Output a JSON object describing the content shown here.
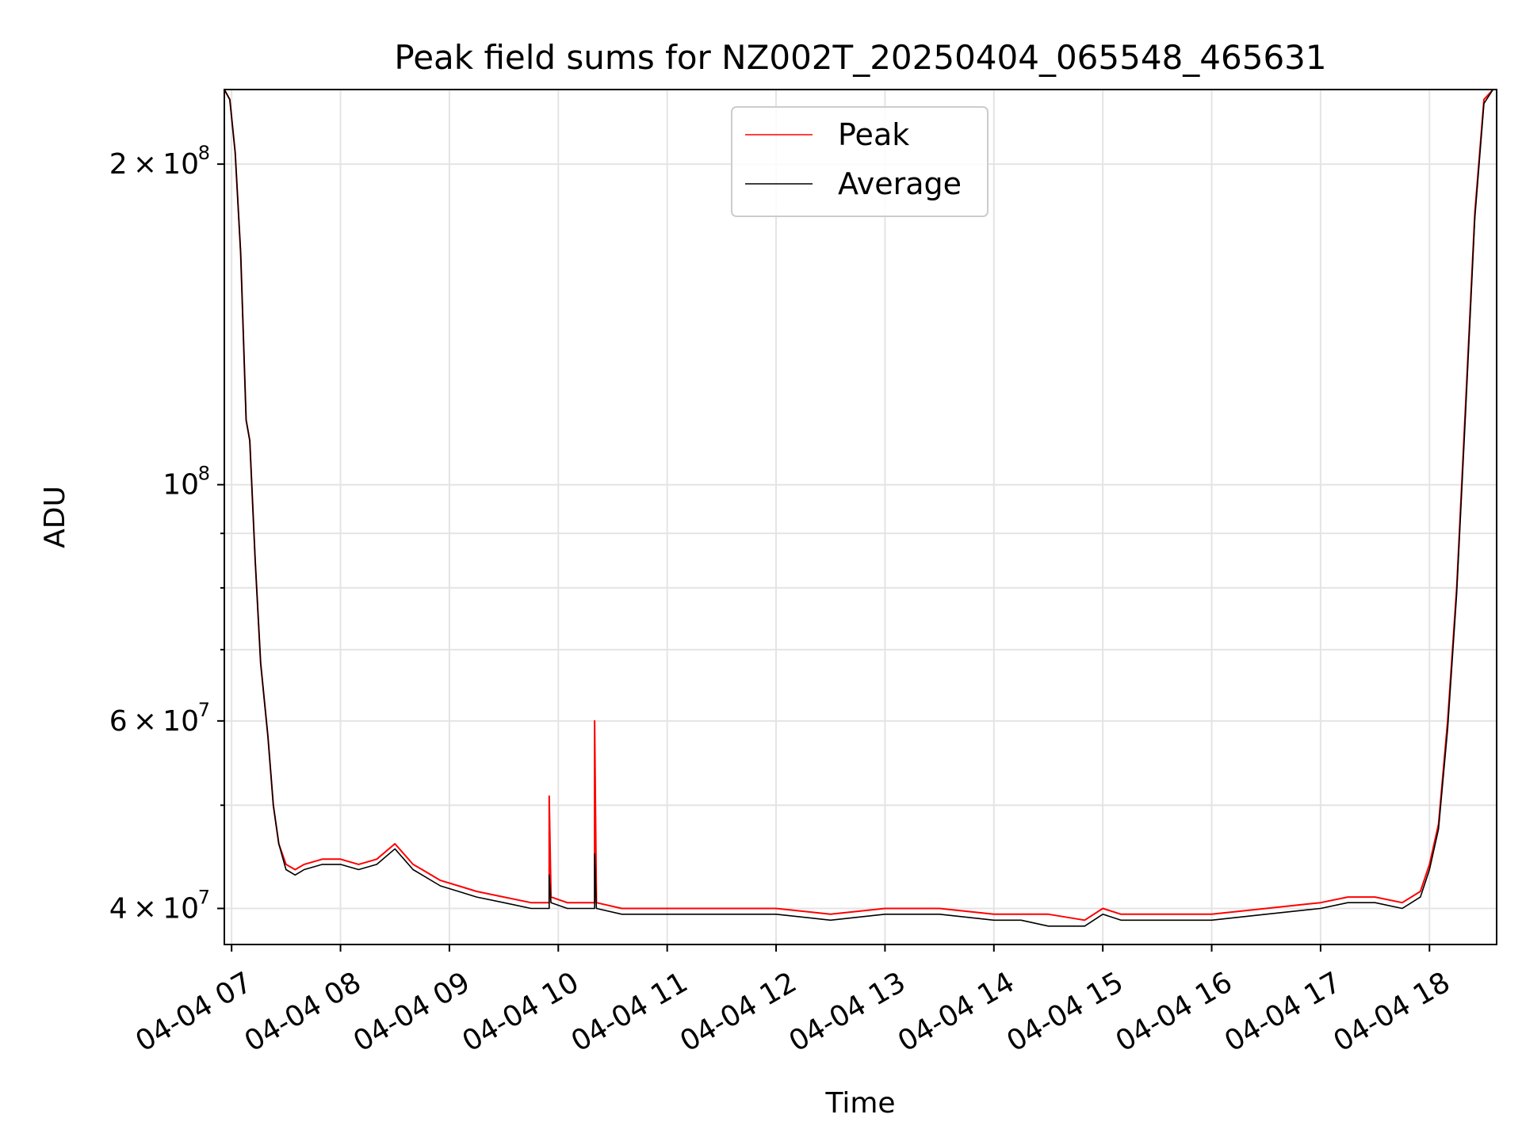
{
  "chart_data": {
    "type": "line",
    "title": "Peak field sums for NZ002T_20250404_065548_465631",
    "xlabel": "Time",
    "ylabel": "ADU",
    "yscale": "log",
    "xlim": [
      "04-04 06:56",
      "04-04 18:37"
    ],
    "ylim": [
      37000000,
      235000000
    ],
    "grid": true,
    "legend_position": "upper center",
    "x_ticks": [
      {
        "value": "04-04 07:00",
        "label": "04-04 07"
      },
      {
        "value": "04-04 08:00",
        "label": "04-04 08"
      },
      {
        "value": "04-04 09:00",
        "label": "04-04 09"
      },
      {
        "value": "04-04 10:00",
        "label": "04-04 10"
      },
      {
        "value": "04-04 11:00",
        "label": "04-04 11"
      },
      {
        "value": "04-04 12:00",
        "label": "04-04 12"
      },
      {
        "value": "04-04 13:00",
        "label": "04-04 13"
      },
      {
        "value": "04-04 14:00",
        "label": "04-04 14"
      },
      {
        "value": "04-04 15:00",
        "label": "04-04 15"
      },
      {
        "value": "04-04 16:00",
        "label": "04-04 16"
      },
      {
        "value": "04-04 17:00",
        "label": "04-04 17"
      },
      {
        "value": "04-04 18:00",
        "label": "04-04 18"
      }
    ],
    "y_ticks_major": [
      {
        "value": 40000000,
        "mant": "4",
        "exp": "7"
      },
      {
        "value": 60000000,
        "mant": "6",
        "exp": "7"
      },
      {
        "value": 100000000,
        "mant": "",
        "exp": "8"
      },
      {
        "value": 200000000,
        "mant": "2",
        "exp": "8"
      }
    ],
    "y_ticks_minor": [
      50000000,
      70000000,
      80000000,
      90000000
    ],
    "series": [
      {
        "name": "Peak",
        "color": "#ff0000",
        "x": [
          "04-04 06:56",
          "04-04 06:59",
          "04-04 07:02",
          "04-04 07:05",
          "04-04 07:08",
          "04-04 07:10",
          "04-04 07:13",
          "04-04 07:16",
          "04-04 07:20",
          "04-04 07:23",
          "04-04 07:26",
          "04-04 07:30",
          "04-04 07:35",
          "04-04 07:40",
          "04-04 07:50",
          "04-04 08:00",
          "04-04 08:10",
          "04-04 08:20",
          "04-04 08:30",
          "04-04 08:40",
          "04-04 08:45",
          "04-04 08:55",
          "04-04 09:05",
          "04-04 09:15",
          "04-04 09:30",
          "04-04 09:45",
          "04-04 09:55",
          "04-04 09:55",
          "04-04 09:56",
          "04-04 10:05",
          "04-04 10:20",
          "04-04 10:20",
          "04-04 10:21",
          "04-04 10:35",
          "04-04 11:00",
          "04-04 11:30",
          "04-04 12:00",
          "04-04 12:30",
          "04-04 13:00",
          "04-04 13:30",
          "04-04 14:00",
          "04-04 14:15",
          "04-04 14:30",
          "04-04 14:50",
          "04-04 15:00",
          "04-04 15:10",
          "04-04 15:30",
          "04-04 16:00",
          "04-04 16:30",
          "04-04 17:00",
          "04-04 17:15",
          "04-04 17:30",
          "04-04 17:45",
          "04-04 17:55",
          "04-04 18:00",
          "04-04 18:05",
          "04-04 18:10",
          "04-04 18:15",
          "04-04 18:20",
          "04-04 18:25",
          "04-04 18:30",
          "04-04 18:35"
        ],
        "values": [
          235000000,
          230000000,
          205000000,
          165000000,
          115000000,
          110000000,
          85000000,
          68000000,
          58000000,
          50000000,
          46000000,
          44000000,
          43500000,
          44000000,
          44500000,
          44500000,
          44000000,
          44500000,
          46000000,
          44000000,
          43500000,
          42500000,
          42000000,
          41500000,
          41000000,
          40500000,
          40500000,
          51000000,
          41000000,
          40500000,
          40500000,
          60000000,
          40500000,
          40000000,
          40000000,
          40000000,
          40000000,
          39500000,
          40000000,
          40000000,
          39500000,
          39500000,
          39500000,
          39000000,
          40000000,
          39500000,
          39500000,
          39500000,
          40000000,
          40500000,
          41000000,
          41000000,
          40500000,
          41500000,
          44000000,
          48000000,
          60000000,
          80000000,
          120000000,
          180000000,
          230000000,
          235000000
        ]
      },
      {
        "name": "Average",
        "color": "#000000",
        "x": [
          "04-04 06:56",
          "04-04 06:59",
          "04-04 07:02",
          "04-04 07:05",
          "04-04 07:08",
          "04-04 07:10",
          "04-04 07:13",
          "04-04 07:16",
          "04-04 07:20",
          "04-04 07:23",
          "04-04 07:26",
          "04-04 07:30",
          "04-04 07:35",
          "04-04 07:40",
          "04-04 07:50",
          "04-04 08:00",
          "04-04 08:10",
          "04-04 08:20",
          "04-04 08:30",
          "04-04 08:40",
          "04-04 08:45",
          "04-04 08:55",
          "04-04 09:05",
          "04-04 09:15",
          "04-04 09:30",
          "04-04 09:45",
          "04-04 09:55",
          "04-04 09:55",
          "04-04 09:56",
          "04-04 10:05",
          "04-04 10:20",
          "04-04 10:20",
          "04-04 10:21",
          "04-04 10:35",
          "04-04 11:00",
          "04-04 11:30",
          "04-04 12:00",
          "04-04 12:30",
          "04-04 13:00",
          "04-04 13:30",
          "04-04 14:00",
          "04-04 14:15",
          "04-04 14:30",
          "04-04 14:50",
          "04-04 15:00",
          "04-04 15:10",
          "04-04 15:30",
          "04-04 16:00",
          "04-04 16:30",
          "04-04 17:00",
          "04-04 17:15",
          "04-04 17:30",
          "04-04 17:45",
          "04-04 17:55",
          "04-04 18:00",
          "04-04 18:05",
          "04-04 18:10",
          "04-04 18:15",
          "04-04 18:20",
          "04-04 18:25",
          "04-04 18:30",
          "04-04 18:35"
        ],
        "values": [
          235000000,
          230000000,
          205000000,
          165000000,
          115000000,
          110000000,
          85000000,
          68000000,
          58000000,
          50000000,
          46000000,
          43500000,
          43000000,
          43500000,
          44000000,
          44000000,
          43500000,
          44000000,
          45500000,
          43500000,
          43000000,
          42000000,
          41500000,
          41000000,
          40500000,
          40000000,
          40000000,
          43000000,
          40500000,
          40000000,
          40000000,
          45000000,
          40000000,
          39500000,
          39500000,
          39500000,
          39500000,
          39000000,
          39500000,
          39500000,
          39000000,
          39000000,
          38500000,
          38500000,
          39500000,
          39000000,
          39000000,
          39000000,
          39500000,
          40000000,
          40500000,
          40500000,
          40000000,
          41000000,
          43500000,
          47500000,
          59000000,
          79000000,
          118000000,
          178000000,
          228000000,
          235000000
        ]
      }
    ]
  }
}
